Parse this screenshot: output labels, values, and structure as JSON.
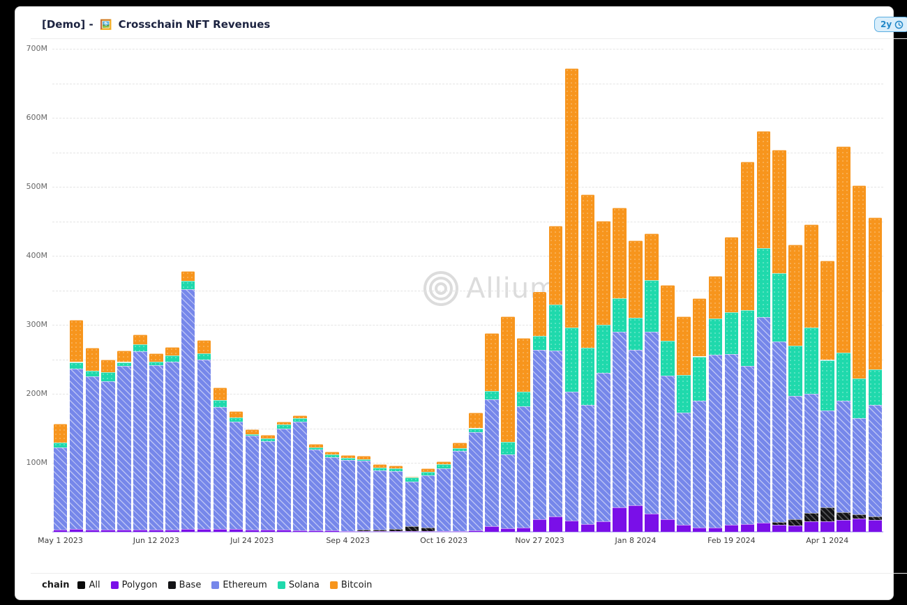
{
  "header": {
    "demo_prefix": "[Demo] -",
    "emoji": "🖼️",
    "title": "Crosschain NFT Revenues",
    "range_badge": "2y"
  },
  "watermark": {
    "text": "Allium"
  },
  "legend": {
    "label": "chain",
    "items": [
      {
        "name": "All",
        "color": "#0a0a0a"
      },
      {
        "name": "Polygon",
        "color": "#7a0fe8"
      },
      {
        "name": "Base",
        "color": "#131316"
      },
      {
        "name": "Ethereum",
        "color": "#7687ea"
      },
      {
        "name": "Solana",
        "color": "#1fd9ac"
      },
      {
        "name": "Bitcoin",
        "color": "#f7951d"
      }
    ]
  },
  "chart_data": {
    "type": "bar",
    "subtype": "stacked-weekly",
    "unit": "M",
    "ylim": [
      0,
      700
    ],
    "ytick_labels": [
      "100M",
      "200M",
      "300M",
      "400M",
      "500M",
      "600M",
      "700M"
    ],
    "grid_step": 50,
    "grid_style": "dashed",
    "legend_position": "bottom",
    "stack_order": [
      "all",
      "polygon",
      "base",
      "ethereum",
      "solana",
      "bitcoin"
    ],
    "series_colors": {
      "all": "#0a0a0a",
      "polygon": "#7a0fe8",
      "base": "#131316",
      "ethereum": "#7687ea",
      "solana": "#1fd9ac",
      "bitcoin": "#f7951d"
    },
    "xticks": [
      {
        "index": 0,
        "label": "May 1 2023"
      },
      {
        "index": 6,
        "label": "Jun 12 2023"
      },
      {
        "index": 12,
        "label": "Jul 24 2023"
      },
      {
        "index": 18,
        "label": "Sep 4 2023"
      },
      {
        "index": 24,
        "label": "Oct 16 2023"
      },
      {
        "index": 30,
        "label": "Nov 27 2023"
      },
      {
        "index": 36,
        "label": "Jan 8 2024"
      },
      {
        "index": 42,
        "label": "Feb 19 2024"
      },
      {
        "index": 48,
        "label": "Apr 1 2024"
      }
    ],
    "weeks": [
      {
        "date": "May 1 2023",
        "all": 0,
        "polygon": 3,
        "base": 0,
        "ethereum": 119,
        "solana": 7,
        "bitcoin": 28
      },
      {
        "date": "May 8 2023",
        "all": 0,
        "polygon": 4,
        "base": 0,
        "ethereum": 232,
        "solana": 10,
        "bitcoin": 61
      },
      {
        "date": "May 15 2023",
        "all": 0,
        "polygon": 3,
        "base": 0,
        "ethereum": 222,
        "solana": 8,
        "bitcoin": 34
      },
      {
        "date": "May 22 2023",
        "all": 0,
        "polygon": 3,
        "base": 0,
        "ethereum": 215,
        "solana": 13,
        "bitcoin": 19
      },
      {
        "date": "May 29 2023",
        "all": 0,
        "polygon": 3,
        "base": 0,
        "ethereum": 237,
        "solana": 6,
        "bitcoin": 17
      },
      {
        "date": "Jun 5 2023",
        "all": 0,
        "polygon": 3,
        "base": 0,
        "ethereum": 259,
        "solana": 10,
        "bitcoin": 14
      },
      {
        "date": "Jun 12 2023",
        "all": 0,
        "polygon": 3,
        "base": 0,
        "ethereum": 238,
        "solana": 5,
        "bitcoin": 13
      },
      {
        "date": "Jun 19 2023",
        "all": 0,
        "polygon": 3,
        "base": 0,
        "ethereum": 243,
        "solana": 10,
        "bitcoin": 12
      },
      {
        "date": "Jun 26 2023",
        "all": 0,
        "polygon": 4,
        "base": 0,
        "ethereum": 347,
        "solana": 13,
        "bitcoin": 14
      },
      {
        "date": "Jul 3 2023",
        "all": 0,
        "polygon": 4,
        "base": 0,
        "ethereum": 245,
        "solana": 10,
        "bitcoin": 19
      },
      {
        "date": "Jul 10 2023",
        "all": 0,
        "polygon": 4,
        "base": 0,
        "ethereum": 177,
        "solana": 10,
        "bitcoin": 18
      },
      {
        "date": "Jul 17 2023",
        "all": 0,
        "polygon": 4,
        "base": 0,
        "ethereum": 156,
        "solana": 6,
        "bitcoin": 9
      },
      {
        "date": "Jul 24 2023",
        "all": 0,
        "polygon": 3,
        "base": 0,
        "ethereum": 136,
        "solana": 2,
        "bitcoin": 8
      },
      {
        "date": "Jul 31 2023",
        "all": 0,
        "polygon": 3,
        "base": 0,
        "ethereum": 128,
        "solana": 4,
        "bitcoin": 5
      },
      {
        "date": "Aug 7 2023",
        "all": 0,
        "polygon": 3,
        "base": 0,
        "ethereum": 146,
        "solana": 7,
        "bitcoin": 4
      },
      {
        "date": "Aug 14 2023",
        "all": 0,
        "polygon": 2,
        "base": 0,
        "ethereum": 158,
        "solana": 5,
        "bitcoin": 4
      },
      {
        "date": "Aug 21 2023",
        "all": 0,
        "polygon": 2,
        "base": 0,
        "ethereum": 117,
        "solana": 3,
        "bitcoin": 5
      },
      {
        "date": "Aug 28 2023",
        "all": 0,
        "polygon": 2,
        "base": 0,
        "ethereum": 106,
        "solana": 4,
        "bitcoin": 4
      },
      {
        "date": "Sep 4 2023",
        "all": 0,
        "polygon": 1,
        "base": 0,
        "ethereum": 103,
        "solana": 3,
        "bitcoin": 4
      },
      {
        "date": "Sep 11 2023",
        "all": 0,
        "polygon": 1,
        "base": 2,
        "ethereum": 100,
        "solana": 2,
        "bitcoin": 5
      },
      {
        "date": "Sep 18 2023",
        "all": 0,
        "polygon": 1,
        "base": 2,
        "ethereum": 86,
        "solana": 4,
        "bitcoin": 5
      },
      {
        "date": "Sep 25 2023",
        "all": 0,
        "polygon": 1,
        "base": 3,
        "ethereum": 84,
        "solana": 4,
        "bitcoin": 4
      },
      {
        "date": "Oct 2 2023",
        "all": 0,
        "polygon": 1,
        "base": 7,
        "ethereum": 65,
        "solana": 6,
        "bitcoin": 1
      },
      {
        "date": "Oct 9 2023",
        "all": 0,
        "polygon": 1,
        "base": 5,
        "ethereum": 76,
        "solana": 5,
        "bitcoin": 5
      },
      {
        "date": "Oct 16 2023",
        "all": 0,
        "polygon": 1,
        "base": 0,
        "ethereum": 91,
        "solana": 6,
        "bitcoin": 4
      },
      {
        "date": "Oct 23 2023",
        "all": 0,
        "polygon": 1,
        "base": 0,
        "ethereum": 116,
        "solana": 4,
        "bitcoin": 8
      },
      {
        "date": "Oct 30 2023",
        "all": 0,
        "polygon": 2,
        "base": 0,
        "ethereum": 142,
        "solana": 6,
        "bitcoin": 23
      },
      {
        "date": "Nov 6 2023",
        "all": 0,
        "polygon": 8,
        "base": 0,
        "ethereum": 184,
        "solana": 12,
        "bitcoin": 84
      },
      {
        "date": "Nov 13 2023",
        "all": 0,
        "polygon": 5,
        "base": 0,
        "ethereum": 107,
        "solana": 18,
        "bitcoin": 182
      },
      {
        "date": "Nov 20 2023",
        "all": 0,
        "polygon": 6,
        "base": 0,
        "ethereum": 176,
        "solana": 21,
        "bitcoin": 78
      },
      {
        "date": "Nov 27 2023",
        "all": 0,
        "polygon": 18,
        "base": 0,
        "ethereum": 246,
        "solana": 20,
        "bitcoin": 64
      },
      {
        "date": "Dec 4 2023",
        "all": 0,
        "polygon": 22,
        "base": 0,
        "ethereum": 241,
        "solana": 66,
        "bitcoin": 114
      },
      {
        "date": "Dec 11 2023",
        "all": 0,
        "polygon": 16,
        "base": 0,
        "ethereum": 187,
        "solana": 93,
        "bitcoin": 376
      },
      {
        "date": "Dec 18 2023",
        "all": 0,
        "polygon": 11,
        "base": 0,
        "ethereum": 173,
        "solana": 83,
        "bitcoin": 222
      },
      {
        "date": "Dec 25 2023",
        "all": 0,
        "polygon": 15,
        "base": 0,
        "ethereum": 215,
        "solana": 70,
        "bitcoin": 151
      },
      {
        "date": "Jan 1 2024",
        "all": 0,
        "polygon": 35,
        "base": 0,
        "ethereum": 255,
        "solana": 48,
        "bitcoin": 132
      },
      {
        "date": "Jan 8 2024",
        "all": 0,
        "polygon": 38,
        "base": 0,
        "ethereum": 226,
        "solana": 46,
        "bitcoin": 112
      },
      {
        "date": "Jan 15 2024",
        "all": 0,
        "polygon": 26,
        "base": 0,
        "ethereum": 264,
        "solana": 75,
        "bitcoin": 67
      },
      {
        "date": "Jan 22 2024",
        "all": 0,
        "polygon": 18,
        "base": 0,
        "ethereum": 208,
        "solana": 51,
        "bitcoin": 81
      },
      {
        "date": "Jan 29 2024",
        "all": 0,
        "polygon": 10,
        "base": 0,
        "ethereum": 163,
        "solana": 54,
        "bitcoin": 85
      },
      {
        "date": "Feb 5 2024",
        "all": 0,
        "polygon": 6,
        "base": 0,
        "ethereum": 184,
        "solana": 64,
        "bitcoin": 84
      },
      {
        "date": "Feb 12 2024",
        "all": 0,
        "polygon": 6,
        "base": 0,
        "ethereum": 251,
        "solana": 52,
        "bitcoin": 62
      },
      {
        "date": "Feb 19 2024",
        "all": 0,
        "polygon": 10,
        "base": 0,
        "ethereum": 248,
        "solana": 60,
        "bitcoin": 109
      },
      {
        "date": "Feb 26 2024",
        "all": 0,
        "polygon": 11,
        "base": 0,
        "ethereum": 229,
        "solana": 81,
        "bitcoin": 215
      },
      {
        "date": "Mar 4 2024",
        "all": 0,
        "polygon": 13,
        "base": 0,
        "ethereum": 298,
        "solana": 100,
        "bitcoin": 170
      },
      {
        "date": "Mar 11 2024",
        "all": 0,
        "polygon": 10,
        "base": 4,
        "ethereum": 262,
        "solana": 99,
        "bitcoin": 179
      },
      {
        "date": "Mar 18 2024",
        "all": 0,
        "polygon": 9,
        "base": 9,
        "ethereum": 179,
        "solana": 73,
        "bitcoin": 146
      },
      {
        "date": "Mar 25 2024",
        "all": 0,
        "polygon": 15,
        "base": 12,
        "ethereum": 173,
        "solana": 96,
        "bitcoin": 149
      },
      {
        "date": "Apr 1 2024",
        "all": 0,
        "polygon": 15,
        "base": 20,
        "ethereum": 141,
        "solana": 73,
        "bitcoin": 144
      },
      {
        "date": "Apr 8 2024",
        "all": 0,
        "polygon": 17,
        "base": 11,
        "ethereum": 162,
        "solana": 70,
        "bitcoin": 299
      },
      {
        "date": "Apr 15 2024",
        "all": 0,
        "polygon": 19,
        "base": 6,
        "ethereum": 140,
        "solana": 57,
        "bitcoin": 280
      },
      {
        "date": "Apr 22 2024",
        "all": 0,
        "polygon": 17,
        "base": 5,
        "ethereum": 162,
        "solana": 51,
        "bitcoin": 221
      }
    ]
  }
}
